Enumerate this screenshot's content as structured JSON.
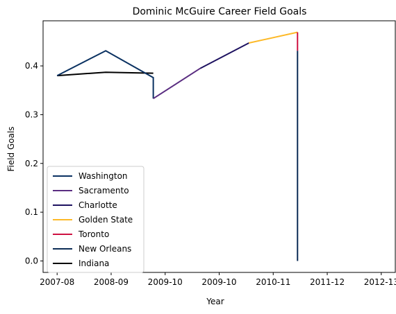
{
  "chart_data": {
    "type": "line",
    "title": "Dominic McGuire Career Field Goals",
    "xlabel": "Year",
    "ylabel": "Field Goals",
    "x_ticks": [
      {
        "x": 0,
        "label": "2007-08"
      },
      {
        "x": 1,
        "label": "2008-09"
      },
      {
        "x": 2,
        "label": "2009-10"
      },
      {
        "x": 3,
        "label": "2009-10"
      },
      {
        "x": 4,
        "label": "2010-11"
      },
      {
        "x": 5,
        "label": "2011-12"
      },
      {
        "x": 6,
        "label": "2012-13"
      }
    ],
    "y_ticks": [
      0.0,
      0.1,
      0.2,
      0.3,
      0.4
    ],
    "xlim": [
      -0.26,
      6.26
    ],
    "ylim": [
      -0.0235,
      0.4925
    ],
    "grid": false,
    "legend_position": "lower-left",
    "series": [
      {
        "name": "Washington",
        "color": "#0a3161",
        "points": [
          [
            0,
            0.38
          ],
          [
            0.9,
            0.431
          ],
          [
            1.78,
            0.376
          ],
          [
            1.78,
            0.333
          ]
        ]
      },
      {
        "name": "Sacramento",
        "color": "#5a2d81",
        "points": [
          [
            1.78,
            0.333
          ],
          [
            2.65,
            0.395
          ]
        ]
      },
      {
        "name": "Charlotte",
        "color": "#1d1160",
        "points": [
          [
            2.65,
            0.395
          ],
          [
            3.55,
            0.447
          ]
        ]
      },
      {
        "name": "Golden State",
        "color": "#fdb927",
        "points": [
          [
            3.55,
            0.447
          ],
          [
            4.45,
            0.469
          ]
        ]
      },
      {
        "name": "Toronto",
        "color": "#ce1141",
        "points": [
          [
            4.45,
            0.469
          ],
          [
            4.45,
            0.431
          ]
        ]
      },
      {
        "name": "New Orleans",
        "color": "#0c2c56",
        "points": [
          [
            4.45,
            0.431
          ],
          [
            4.45,
            0.0
          ]
        ]
      },
      {
        "name": "Indiana",
        "color": "#000000",
        "points": [
          [
            0,
            0.38
          ],
          [
            0.9,
            0.387
          ],
          [
            1.78,
            0.385
          ]
        ]
      }
    ]
  }
}
